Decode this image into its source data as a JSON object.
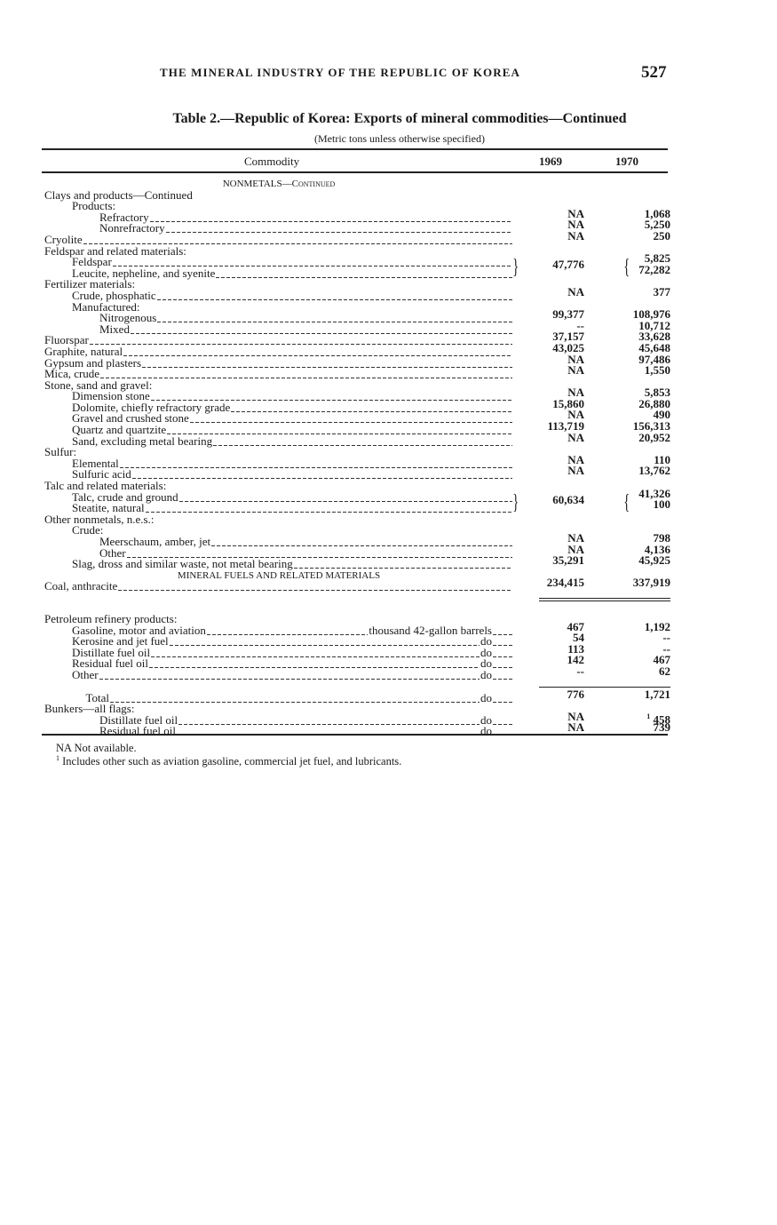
{
  "running_head": "THE MINERAL INDUSTRY OF THE REPUBLIC OF KOREA",
  "page_number": "527",
  "table": {
    "title": "Table 2.—Republic of Korea:  Exports of mineral commodities—Continued",
    "subtitle": "(Metric tons unless otherwise specified)",
    "headers": {
      "commodity": "Commodity",
      "y1969": "1969",
      "y1970": "1970"
    },
    "rows": [
      {
        "type": "section",
        "label": "NONMETALS—Continued"
      },
      {
        "label": "Clays and products—Continued",
        "indent": 0
      },
      {
        "label": "Products:",
        "indent": 1
      },
      {
        "label": "Refractory",
        "indent": 2,
        "v1969": "NA",
        "v1970": "1,068",
        "leader": true
      },
      {
        "label": "Nonrefractory",
        "indent": 2,
        "v1969": "NA",
        "v1970": "5,250",
        "leader": true
      },
      {
        "label": "Cryolite",
        "indent": 0,
        "v1969": "NA",
        "v1970": "250",
        "leader": true
      },
      {
        "label": "Feldspar and related materials:",
        "indent": 0
      },
      {
        "label": "Feldspar",
        "indent": 1,
        "v1969": "47,776",
        "v1970": "5,825",
        "leader": true,
        "bracket": "start"
      },
      {
        "label": "Leucite, nepheline, and syenite",
        "indent": 1,
        "v1970": "72,282",
        "leader": true,
        "bracket": "end"
      },
      {
        "label": "Fertilizer materials:",
        "indent": 0
      },
      {
        "label": "Crude, phosphatic",
        "indent": 1,
        "v1969": "NA",
        "v1970": "377",
        "leader": true
      },
      {
        "label": "Manufactured:",
        "indent": 1
      },
      {
        "label": "Nitrogenous",
        "indent": 2,
        "v1969": "99,377",
        "v1970": "108,976",
        "leader": true
      },
      {
        "label": "Mixed",
        "indent": 2,
        "v1969": "--",
        "v1970": "10,712",
        "leader": true
      },
      {
        "label": "Fluorspar",
        "indent": 0,
        "v1969": "37,157",
        "v1970": "33,628",
        "leader": true
      },
      {
        "label": "Graphite, natural",
        "indent": 0,
        "v1969": "43,025",
        "v1970": "45,648",
        "leader": true
      },
      {
        "label": "Gypsum and plasters",
        "indent": 0,
        "v1969": "NA",
        "v1970": "97,486",
        "leader": true
      },
      {
        "label": "Mica, crude",
        "indent": 0,
        "v1969": "NA",
        "v1970": "1,550",
        "leader": true
      },
      {
        "label": "Stone, sand and gravel:",
        "indent": 0
      },
      {
        "label": "Dimension stone",
        "indent": 1,
        "v1969": "NA",
        "v1970": "5,853",
        "leader": true
      },
      {
        "label": "Dolomite, chiefly refractory grade",
        "indent": 1,
        "v1969": "15,860",
        "v1970": "26,880",
        "leader": true
      },
      {
        "label": "Gravel and crushed stone",
        "indent": 1,
        "v1969": "NA",
        "v1970": "490",
        "leader": true
      },
      {
        "label": "Quartz and quartzite",
        "indent": 1,
        "v1969": "113,719",
        "v1970": "156,313",
        "leader": true
      },
      {
        "label": "Sand, excluding metal bearing",
        "indent": 1,
        "v1969": "NA",
        "v1970": "20,952",
        "leader": true
      },
      {
        "label": "Sulfur:",
        "indent": 0
      },
      {
        "label": "Elemental",
        "indent": 1,
        "v1969": "NA",
        "v1970": "110",
        "leader": true
      },
      {
        "label": "Sulfuric acid",
        "indent": 1,
        "v1969": "NA",
        "v1970": "13,762",
        "leader": true
      },
      {
        "label": "Talc and related materials:",
        "indent": 0
      },
      {
        "label": "Talc, crude and ground",
        "indent": 1,
        "v1969": "60,634",
        "v1970": "41,326",
        "leader": true,
        "bracket": "start"
      },
      {
        "label": "Steatite, natural",
        "indent": 1,
        "v1970": "100",
        "leader": true,
        "bracket": "end"
      },
      {
        "label": "Other nonmetals, n.e.s.:",
        "indent": 0
      },
      {
        "label": "Crude:",
        "indent": 1
      },
      {
        "label": "Meerschaum, amber, jet",
        "indent": 2,
        "v1969": "NA",
        "v1970": "798",
        "leader": true
      },
      {
        "label": "Other",
        "indent": 2,
        "v1969": "NA",
        "v1970": "4,136",
        "leader": true
      },
      {
        "label": "Slag, dross and similar waste, not metal bearing",
        "indent": 1,
        "v1969": "35,291",
        "v1970": "45,925",
        "leader": true
      },
      {
        "type": "section",
        "label": "MINERAL FUELS AND RELATED MATERIALS"
      },
      {
        "label": "Coal, anthracite",
        "indent": 0,
        "v1969": "234,415",
        "v1970": "337,919",
        "leader": true,
        "rule_after": "double"
      },
      {
        "type": "gap"
      },
      {
        "label": "Petroleum refinery products:",
        "indent": 0
      },
      {
        "label": "Gasoline, motor and aviation",
        "unit": "thousand 42-gallon barrels",
        "indent": 1,
        "v1969": "467",
        "v1970": "1,192",
        "leader": true
      },
      {
        "label": "Kerosine and jet fuel",
        "unit": "do",
        "indent": 1,
        "v1969": "54",
        "v1970": "--",
        "leader": true
      },
      {
        "label": "Distillate fuel oil",
        "unit": "do",
        "indent": 1,
        "v1969": "113",
        "v1970": "--",
        "leader": true
      },
      {
        "label": "Residual fuel oil",
        "unit": "do",
        "indent": 1,
        "v1969": "142",
        "v1970": "467",
        "leader": true
      },
      {
        "label": "Other",
        "unit": "do",
        "indent": 1,
        "v1969": "--",
        "v1970": "62",
        "leader": true,
        "rule_after": "single"
      },
      {
        "type": "gap"
      },
      {
        "label": "Total",
        "unit": "do",
        "indent": 1.5,
        "v1969": "776",
        "v1970": "1,721",
        "leader": true
      },
      {
        "label": "Bunkers—all flags:",
        "indent": 0
      },
      {
        "label": "Distillate fuel oil",
        "unit": "do",
        "indent": 2,
        "v1969": "NA",
        "v1970": "458",
        "v1970_footnote": "1",
        "leader": true
      },
      {
        "label": "Residual fuel oil",
        "unit": "do",
        "indent": 2,
        "v1969": "NA",
        "v1970": "739",
        "leader": true
      }
    ]
  },
  "notes": {
    "na": "NA  Not available.",
    "footnote_mark": "1",
    "footnote1": "Includes other such as aviation gasoline, commercial jet fuel, and lubricants."
  }
}
